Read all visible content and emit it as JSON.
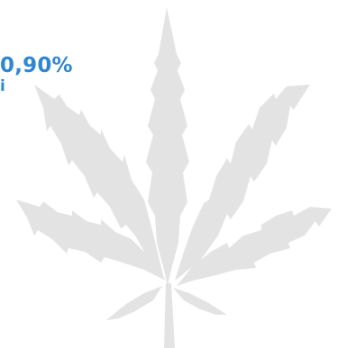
{
  "stat": {
    "value": "0,90%",
    "sub": "i"
  },
  "colors": {
    "accent": "#2f86d1",
    "leaf": "#e3e3e3",
    "background": "#ffffff"
  },
  "icons": {
    "background_art": "cannabis-leaf-icon"
  }
}
